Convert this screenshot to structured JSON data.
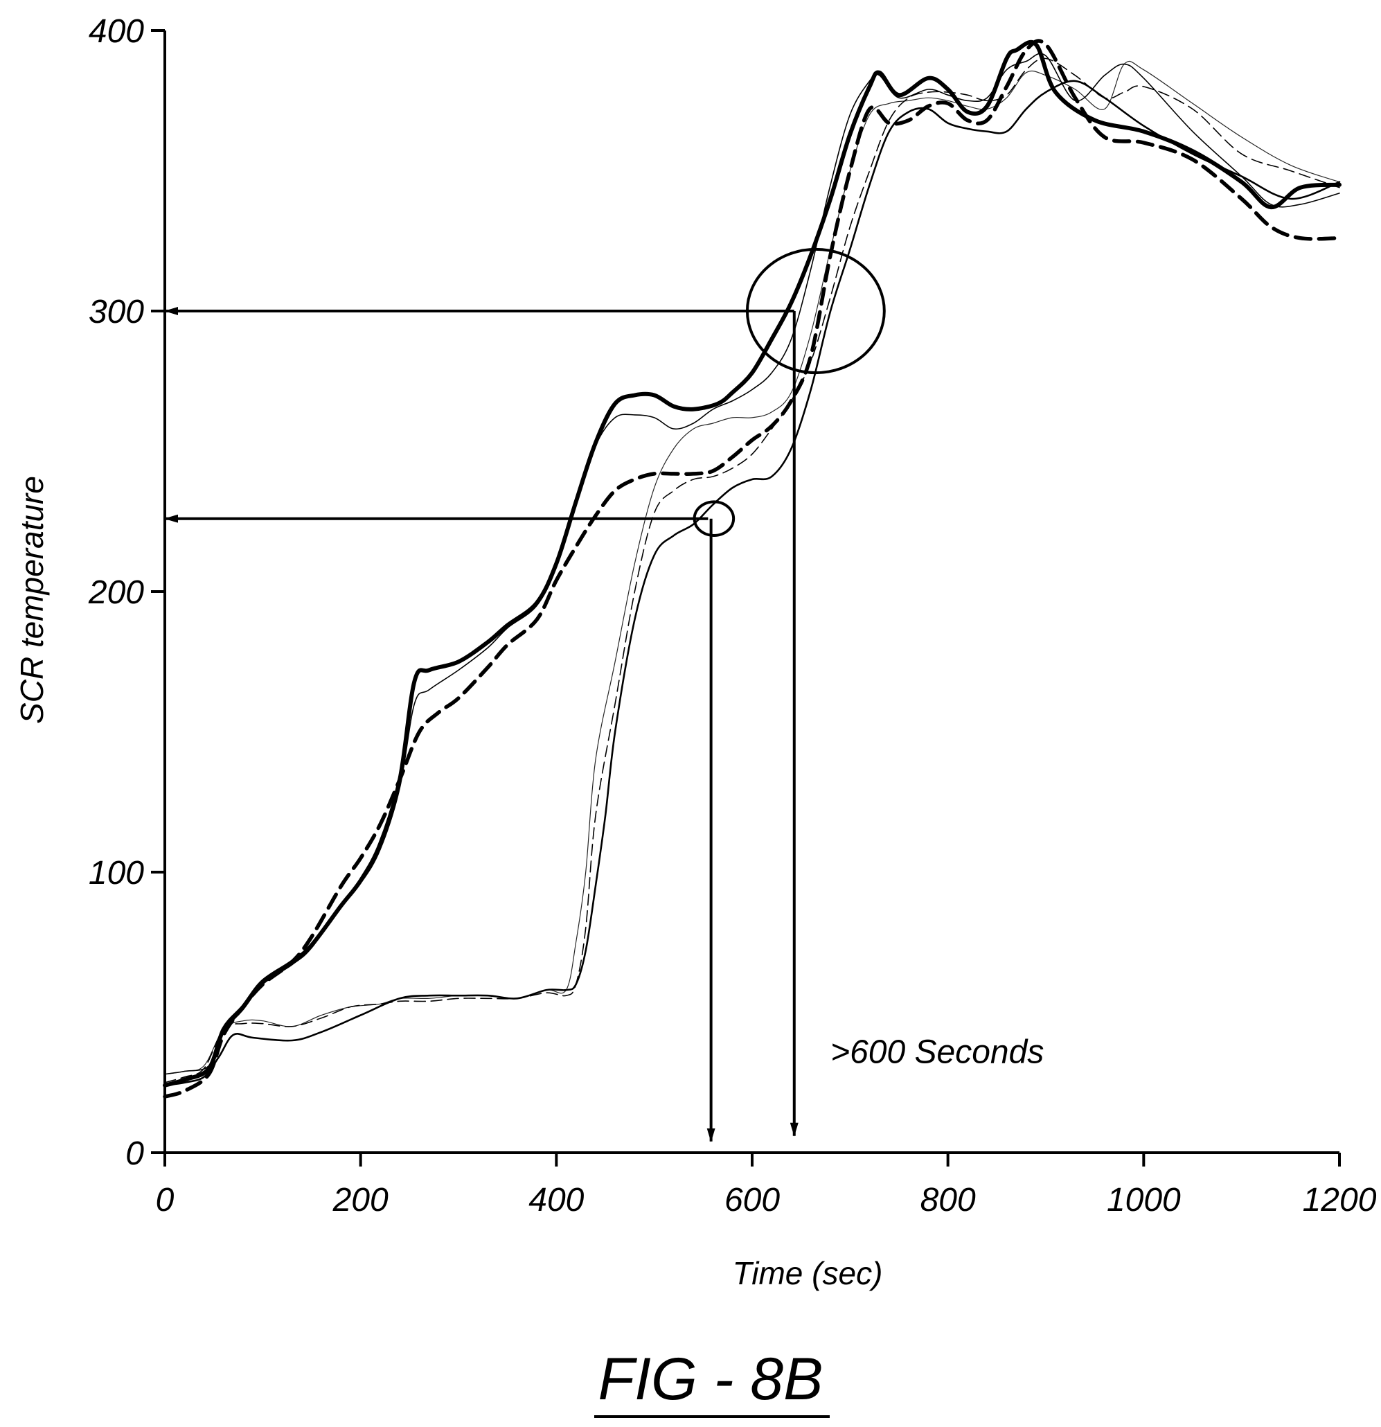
{
  "figure": {
    "caption": "FIG - 8B"
  },
  "chart_data": {
    "type": "line",
    "title": "",
    "xlabel": "Time (sec)",
    "ylabel": "SCR temperature",
    "xlim": [
      0,
      1200
    ],
    "ylim": [
      0,
      400
    ],
    "xticks": [
      0,
      200,
      400,
      600,
      800,
      1000,
      1200
    ],
    "yticks": [
      0,
      100,
      200,
      300,
      400
    ],
    "grid": false,
    "legend": "none",
    "annotations": [
      {
        "text": ">600 Seconds",
        "x": 680,
        "y": 32
      }
    ],
    "reference_lines": [
      {
        "from": [
          643,
          300
        ],
        "to": [
          0,
          300
        ],
        "arrow": "end"
      },
      {
        "from": [
          643,
          300
        ],
        "to": [
          643,
          6
        ],
        "arrow": "end"
      },
      {
        "from": [
          555,
          226
        ],
        "to": [
          0,
          226
        ],
        "arrow": "end"
      },
      {
        "from": [
          558,
          226
        ],
        "to": [
          558,
          4
        ],
        "arrow": "end"
      }
    ],
    "highlight_circles": [
      {
        "cx": 665,
        "cy": 300,
        "rx": 70,
        "ry": 22
      },
      {
        "cx": 561,
        "cy": 226,
        "rx": 20,
        "ry": 6
      }
    ],
    "series": [
      {
        "style": "thick-solid",
        "x": [
          0,
          20,
          45,
          60,
          80,
          100,
          130,
          150,
          180,
          200,
          220,
          240,
          255,
          270,
          300,
          330,
          350,
          380,
          400,
          420,
          440,
          460,
          480,
          500,
          520,
          540,
          565,
          580,
          600,
          620,
          640,
          660,
          680,
          700,
          720,
          730,
          750,
          780,
          800,
          820,
          840,
          860,
          870,
          890,
          910,
          950,
          1000,
          1050,
          1100,
          1130,
          1160,
          1200
        ],
        "values": [
          24,
          26,
          30,
          44,
          52,
          61,
          68,
          74,
          88,
          97,
          110,
          133,
          168,
          172,
          175,
          182,
          188,
          196,
          210,
          232,
          253,
          267,
          270,
          270,
          266,
          265,
          267,
          271,
          278,
          290,
          303,
          320,
          340,
          363,
          380,
          385,
          377,
          383,
          379,
          371,
          373,
          390,
          393,
          395,
          378,
          368,
          364,
          357,
          346,
          337,
          344,
          345
        ]
      },
      {
        "style": "thick-dashed",
        "x": [
          0,
          20,
          45,
          60,
          80,
          100,
          130,
          150,
          180,
          200,
          220,
          240,
          260,
          280,
          300,
          330,
          350,
          380,
          400,
          420,
          440,
          460,
          480,
          500,
          520,
          540,
          560,
          580,
          600,
          620,
          640,
          660,
          680,
          700,
          720,
          740,
          760,
          780,
          800,
          820,
          840,
          860,
          880,
          900,
          930,
          960,
          1000,
          1050,
          1100,
          1130,
          1160,
          1200
        ],
        "values": [
          20,
          22,
          28,
          42,
          52,
          60,
          68,
          77,
          95,
          105,
          117,
          133,
          150,
          157,
          162,
          173,
          181,
          190,
          204,
          216,
          227,
          236,
          240,
          242,
          242,
          242,
          243,
          248,
          254,
          259,
          268,
          284,
          320,
          350,
          372,
          367,
          368,
          373,
          374,
          368,
          368,
          380,
          393,
          395,
          376,
          362,
          360,
          354,
          340,
          330,
          326,
          326
        ]
      },
      {
        "style": "thin-solid",
        "x": [
          0,
          20,
          45,
          60,
          80,
          100,
          130,
          150,
          180,
          200,
          220,
          240,
          255,
          270,
          300,
          330,
          350,
          380,
          400,
          420,
          440,
          460,
          480,
          500,
          520,
          540,
          560,
          580,
          600,
          620,
          640,
          660,
          680,
          700,
          720,
          730,
          750,
          780,
          800,
          820,
          840,
          860,
          880,
          900,
          930,
          960,
          980,
          1000,
          1050,
          1100,
          1130,
          1160,
          1200
        ],
        "values": [
          28,
          29,
          31,
          43,
          51,
          60,
          67,
          73,
          88,
          96,
          108,
          130,
          160,
          165,
          172,
          180,
          187,
          195,
          209,
          231,
          252,
          262,
          263,
          262,
          258,
          260,
          265,
          268,
          272,
          278,
          290,
          315,
          345,
          370,
          382,
          384,
          376,
          379,
          377,
          375,
          376,
          386,
          389,
          391,
          375,
          384,
          388,
          383,
          364,
          348,
          338,
          338,
          342
        ]
      },
      {
        "style": "thin-dashed",
        "x": [
          0,
          20,
          40,
          60,
          80,
          100,
          130,
          160,
          190,
          220,
          240,
          270,
          300,
          330,
          360,
          390,
          410,
          420,
          430,
          440,
          460,
          480,
          500,
          520,
          540,
          560,
          580,
          600,
          620,
          640,
          660,
          680,
          700,
          720,
          740,
          760,
          780,
          800,
          820,
          840,
          860,
          880,
          900,
          930,
          960,
          980,
          1000,
          1050,
          1100,
          1150,
          1200
        ],
        "values": [
          25,
          27,
          30,
          44,
          46,
          46,
          45,
          48,
          52,
          53,
          54,
          54,
          55,
          55,
          55,
          57,
          56,
          60,
          80,
          120,
          160,
          200,
          228,
          236,
          240,
          241,
          244,
          249,
          258,
          268,
          282,
          305,
          330,
          350,
          368,
          376,
          378,
          378,
          377,
          375,
          377,
          386,
          390,
          384,
          376,
          378,
          380,
          372,
          356,
          350,
          344
        ]
      },
      {
        "style": "thin-solid-light",
        "x": [
          0,
          20,
          40,
          60,
          80,
          100,
          130,
          160,
          190,
          220,
          240,
          270,
          300,
          330,
          360,
          390,
          410,
          420,
          430,
          440,
          460,
          480,
          500,
          520,
          540,
          560,
          580,
          600,
          620,
          640,
          660,
          680,
          700,
          720,
          740,
          760,
          780,
          800,
          820,
          840,
          860,
          880,
          900,
          930,
          960,
          980,
          1000,
          1050,
          1100,
          1150,
          1200
        ],
        "values": [
          28,
          29,
          31,
          44,
          47,
          47,
          45,
          49,
          52,
          53,
          55,
          55,
          56,
          56,
          55,
          58,
          58,
          75,
          100,
          140,
          175,
          210,
          237,
          251,
          258,
          260,
          262,
          262,
          264,
          271,
          292,
          322,
          350,
          370,
          374,
          375,
          376,
          375,
          373,
          372,
          376,
          385,
          384,
          379,
          372,
          388,
          386,
          374,
          362,
          352,
          346
        ]
      },
      {
        "style": "medium-solid",
        "x": [
          0,
          20,
          40,
          55,
          70,
          90,
          130,
          160,
          200,
          240,
          270,
          300,
          330,
          360,
          390,
          410,
          420,
          430,
          440,
          450,
          460,
          480,
          500,
          520,
          540,
          560,
          580,
          600,
          620,
          640,
          660,
          680,
          700,
          720,
          740,
          760,
          780,
          800,
          820,
          840,
          860,
          880,
          900,
          930,
          960,
          1000,
          1050,
          1100,
          1150,
          1200
        ],
        "values": [
          24,
          25,
          27,
          34,
          42,
          41,
          40,
          43,
          49,
          55,
          56,
          56,
          56,
          55,
          58,
          58,
          60,
          72,
          95,
          120,
          150,
          190,
          213,
          220,
          224,
          231,
          237,
          240,
          241,
          251,
          272,
          300,
          322,
          345,
          364,
          371,
          372,
          367,
          365,
          364,
          364,
          372,
          378,
          382,
          376,
          366,
          356,
          348,
          340,
          346
        ]
      }
    ]
  }
}
